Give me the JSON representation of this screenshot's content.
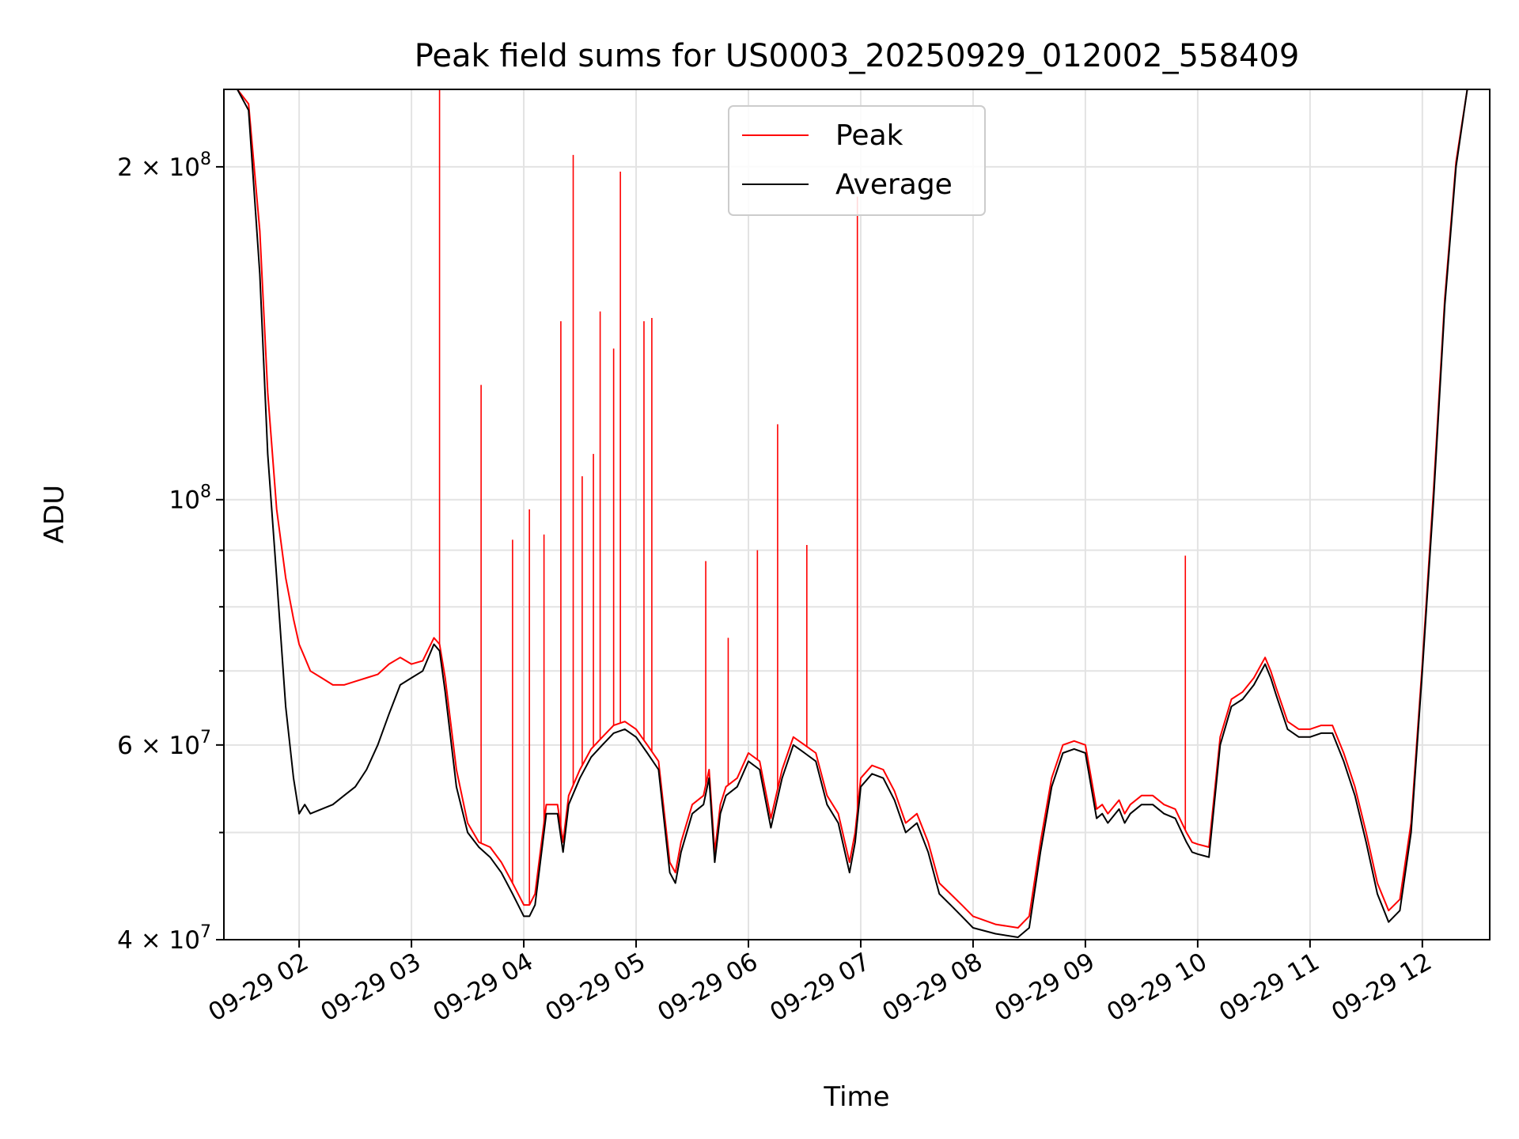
{
  "chart_data": {
    "type": "line",
    "title": "Peak field sums for US0003_20250929_012002_558409",
    "xlabel": "Time",
    "ylabel": "ADU",
    "yscale": "log",
    "ylim": [
      40000000,
      235000000
    ],
    "xlim": [
      1.33,
      12.6
    ],
    "grid": true,
    "legend_position": "upper-center",
    "colors": {
      "Peak": "#ff0000",
      "Average": "#000000"
    },
    "x_unit": "hours after 2025-09-29 00:00",
    "x_ticks": [
      {
        "value": 2,
        "label": "09-29 02"
      },
      {
        "value": 3,
        "label": "09-29 03"
      },
      {
        "value": 4,
        "label": "09-29 04"
      },
      {
        "value": 5,
        "label": "09-29 05"
      },
      {
        "value": 6,
        "label": "09-29 06"
      },
      {
        "value": 7,
        "label": "09-29 07"
      },
      {
        "value": 8,
        "label": "09-29 08"
      },
      {
        "value": 9,
        "label": "09-29 09"
      },
      {
        "value": 10,
        "label": "09-29 10"
      },
      {
        "value": 11,
        "label": "09-29 11"
      },
      {
        "value": 12,
        "label": "09-29 12"
      }
    ],
    "y_ticks": [
      {
        "value": 40000000,
        "base": "4 × 10",
        "exp": "7"
      },
      {
        "value": 60000000,
        "base": "6 × 10",
        "exp": "7"
      },
      {
        "value": 100000000,
        "base": "10",
        "exp": "8"
      },
      {
        "value": 200000000,
        "base": "2 × 10",
        "exp": "8"
      }
    ],
    "y_minor_ticks": [
      50000000,
      70000000,
      80000000,
      90000000
    ],
    "series": [
      {
        "name": "Average",
        "x": [
          1.33,
          1.45,
          1.55,
          1.65,
          1.72,
          1.8,
          1.88,
          1.95,
          2.0,
          2.05,
          2.1,
          2.2,
          2.3,
          2.4,
          2.5,
          2.6,
          2.7,
          2.8,
          2.9,
          3.0,
          3.1,
          3.2,
          3.25,
          3.3,
          3.4,
          3.5,
          3.6,
          3.7,
          3.8,
          3.9,
          4.0,
          4.05,
          4.1,
          4.2,
          4.3,
          4.35,
          4.4,
          4.5,
          4.6,
          4.7,
          4.8,
          4.9,
          5.0,
          5.1,
          5.2,
          5.3,
          5.35,
          5.4,
          5.5,
          5.6,
          5.65,
          5.7,
          5.75,
          5.8,
          5.9,
          6.0,
          6.1,
          6.2,
          6.3,
          6.4,
          6.5,
          6.6,
          6.7,
          6.8,
          6.9,
          6.95,
          7.0,
          7.1,
          7.2,
          7.3,
          7.4,
          7.5,
          7.6,
          7.7,
          7.8,
          7.9,
          8.0,
          8.2,
          8.4,
          8.5,
          8.6,
          8.7,
          8.8,
          8.9,
          9.0,
          9.1,
          9.15,
          9.2,
          9.3,
          9.35,
          9.4,
          9.5,
          9.6,
          9.7,
          9.8,
          9.9,
          9.95,
          10.0,
          10.1,
          10.2,
          10.3,
          10.4,
          10.5,
          10.6,
          10.65,
          10.7,
          10.8,
          10.9,
          11.0,
          11.1,
          11.2,
          11.3,
          11.4,
          11.5,
          11.6,
          11.7,
          11.8,
          11.9,
          12.0,
          12.1,
          12.2,
          12.3,
          12.4,
          12.5
        ],
        "values": [
          235000000,
          235000000,
          225000000,
          160000000,
          110000000,
          85000000,
          65000000,
          56000000,
          52000000,
          53000000,
          52000000,
          52500000,
          53000000,
          54000000,
          55000000,
          57000000,
          60000000,
          64000000,
          68000000,
          69000000,
          70000000,
          74000000,
          73000000,
          67000000,
          55000000,
          50000000,
          48500000,
          47500000,
          46000000,
          44000000,
          42000000,
          42000000,
          43000000,
          52000000,
          52000000,
          48000000,
          53000000,
          56000000,
          58500000,
          60000000,
          61500000,
          62000000,
          61000000,
          59000000,
          57000000,
          46000000,
          45000000,
          48000000,
          52000000,
          53000000,
          56000000,
          47000000,
          52000000,
          54000000,
          55000000,
          58000000,
          57000000,
          50500000,
          56000000,
          60000000,
          59000000,
          58000000,
          53000000,
          51000000,
          46000000,
          49000000,
          55000000,
          56500000,
          56000000,
          53500000,
          50000000,
          51000000,
          48000000,
          44000000,
          43000000,
          42000000,
          41000000,
          40500000,
          40200000,
          41000000,
          48000000,
          55000000,
          59000000,
          59500000,
          59000000,
          51500000,
          52000000,
          51000000,
          52500000,
          51000000,
          52000000,
          53000000,
          53000000,
          52000000,
          51500000,
          49000000,
          48000000,
          47800000,
          47500000,
          60000000,
          65000000,
          66000000,
          68000000,
          71000000,
          69000000,
          66500000,
          62000000,
          61000000,
          61000000,
          61500000,
          61500000,
          58000000,
          54000000,
          49000000,
          44000000,
          41500000,
          42500000,
          50000000,
          70000000,
          100000000,
          150000000,
          200000000,
          235000000,
          235000000
        ]
      },
      {
        "name": "Peak",
        "x": [
          1.33,
          1.45,
          1.55,
          1.65,
          1.72,
          1.8,
          1.88,
          1.95,
          2.0,
          2.05,
          2.1,
          2.2,
          2.3,
          2.4,
          2.5,
          2.6,
          2.7,
          2.8,
          2.9,
          3.0,
          3.1,
          3.2,
          3.25,
          3.3,
          3.4,
          3.5,
          3.6,
          3.7,
          3.8,
          3.9,
          4.0,
          4.05,
          4.1,
          4.2,
          4.3,
          4.35,
          4.4,
          4.5,
          4.6,
          4.7,
          4.8,
          4.9,
          5.0,
          5.1,
          5.2,
          5.3,
          5.35,
          5.4,
          5.5,
          5.6,
          5.65,
          5.7,
          5.75,
          5.8,
          5.9,
          6.0,
          6.1,
          6.2,
          6.3,
          6.4,
          6.5,
          6.6,
          6.7,
          6.8,
          6.9,
          6.95,
          7.0,
          7.1,
          7.2,
          7.3,
          7.4,
          7.5,
          7.6,
          7.7,
          7.8,
          7.9,
          8.0,
          8.2,
          8.4,
          8.5,
          8.6,
          8.7,
          8.8,
          8.9,
          9.0,
          9.1,
          9.15,
          9.2,
          9.3,
          9.35,
          9.4,
          9.5,
          9.6,
          9.7,
          9.8,
          9.9,
          9.95,
          10.0,
          10.1,
          10.2,
          10.3,
          10.4,
          10.5,
          10.6,
          10.65,
          10.7,
          10.8,
          10.9,
          11.0,
          11.1,
          11.2,
          11.3,
          11.4,
          11.5,
          11.6,
          11.7,
          11.8,
          11.9,
          12.0,
          12.1,
          12.2,
          12.3,
          12.4,
          12.5
        ],
        "values": [
          235000000,
          235000000,
          228000000,
          175000000,
          125000000,
          98000000,
          85000000,
          78000000,
          74000000,
          72000000,
          70000000,
          69000000,
          68000000,
          68000000,
          68500000,
          69000000,
          69500000,
          71000000,
          72000000,
          71000000,
          71500000,
          75000000,
          74000000,
          69000000,
          57000000,
          51000000,
          49000000,
          48500000,
          47000000,
          45000000,
          43000000,
          43000000,
          44000000,
          53000000,
          53000000,
          49000000,
          54000000,
          57000000,
          59500000,
          61000000,
          62500000,
          63000000,
          62000000,
          60000000,
          58000000,
          47000000,
          46000000,
          49000000,
          53000000,
          54000000,
          57000000,
          48000000,
          53000000,
          55000000,
          56000000,
          59000000,
          58000000,
          51500000,
          57000000,
          61000000,
          60000000,
          59000000,
          54000000,
          52000000,
          47000000,
          50000000,
          56000000,
          57500000,
          57000000,
          54500000,
          51000000,
          52000000,
          49000000,
          45000000,
          44000000,
          43000000,
          42000000,
          41300000,
          41000000,
          42000000,
          49000000,
          56000000,
          60000000,
          60500000,
          60000000,
          52500000,
          53000000,
          52000000,
          53500000,
          52000000,
          53000000,
          54000000,
          54000000,
          53000000,
          52500000,
          50000000,
          49000000,
          48800000,
          48500000,
          61000000,
          66000000,
          67000000,
          69000000,
          72000000,
          70000000,
          67500000,
          63000000,
          62000000,
          62000000,
          62500000,
          62500000,
          59000000,
          55000000,
          50000000,
          45000000,
          42500000,
          43500000,
          51000000,
          71000000,
          102000000,
          152000000,
          202000000,
          235000000,
          235000000
        ],
        "spikes": [
          {
            "x": 3.25,
            "value": 235000000
          },
          {
            "x": 3.62,
            "value": 127000000
          },
          {
            "x": 3.9,
            "value": 92000000
          },
          {
            "x": 4.05,
            "value": 98000000
          },
          {
            "x": 4.18,
            "value": 93000000
          },
          {
            "x": 4.33,
            "value": 145000000
          },
          {
            "x": 4.44,
            "value": 205000000
          },
          {
            "x": 4.52,
            "value": 105000000
          },
          {
            "x": 4.62,
            "value": 110000000
          },
          {
            "x": 4.68,
            "value": 148000000
          },
          {
            "x": 4.8,
            "value": 137000000
          },
          {
            "x": 4.86,
            "value": 198000000
          },
          {
            "x": 5.07,
            "value": 145000000
          },
          {
            "x": 5.14,
            "value": 146000000
          },
          {
            "x": 5.62,
            "value": 88000000
          },
          {
            "x": 5.82,
            "value": 75000000
          },
          {
            "x": 6.08,
            "value": 90000000
          },
          {
            "x": 6.26,
            "value": 117000000
          },
          {
            "x": 6.52,
            "value": 91000000
          },
          {
            "x": 6.97,
            "value": 188000000
          },
          {
            "x": 9.89,
            "value": 89000000
          }
        ]
      }
    ]
  }
}
